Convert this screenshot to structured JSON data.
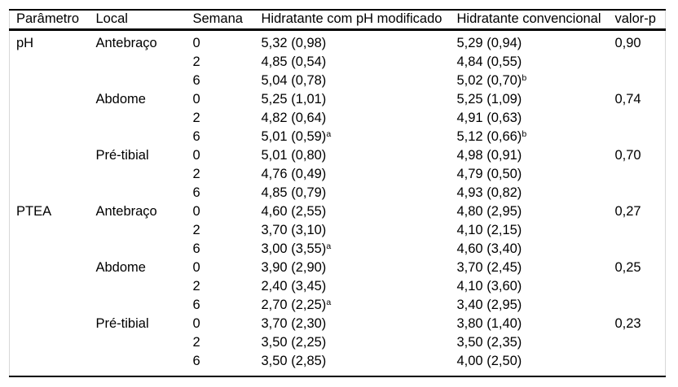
{
  "colors": {
    "background": "#ffffff",
    "text": "#000000",
    "rule": "#000000",
    "side_border": "#d8d8d8"
  },
  "table": {
    "columns": [
      "Parâmetro",
      "Local",
      "Semana",
      "Hidratante com pH modificado",
      "Hidratante convencional",
      "valor-p"
    ],
    "rows": [
      {
        "param": "pH",
        "local": "Antebraço",
        "week": "0",
        "mod": "5,32 (0,98)",
        "mod_sup": "",
        "conv": "5,29 (0,94)",
        "conv_sup": "",
        "p": "0,90"
      },
      {
        "param": "",
        "local": "",
        "week": "2",
        "mod": "4,85 (0,54)",
        "mod_sup": "",
        "conv": "4,84 (0,55)",
        "conv_sup": "",
        "p": ""
      },
      {
        "param": "",
        "local": "",
        "week": "6",
        "mod": "5,04 (0,78)",
        "mod_sup": "",
        "conv": "5,02 (0,70)",
        "conv_sup": "b",
        "p": ""
      },
      {
        "param": "",
        "local": "Abdome",
        "week": "0",
        "mod": "5,25 (1,01)",
        "mod_sup": "",
        "conv": "5,25 (1,09)",
        "conv_sup": "",
        "p": "0,74"
      },
      {
        "param": "",
        "local": "",
        "week": "2",
        "mod": "4,82 (0,64)",
        "mod_sup": "",
        "conv": "4,91 (0,63)",
        "conv_sup": "",
        "p": ""
      },
      {
        "param": "",
        "local": "",
        "week": "6",
        "mod": "5,01 (0,59)",
        "mod_sup": "a",
        "conv": "5,12 (0,66)",
        "conv_sup": "b",
        "p": ""
      },
      {
        "param": "",
        "local": "Pré-tibial",
        "week": "0",
        "mod": "5,01 (0,80)",
        "mod_sup": "",
        "conv": "4,98 (0,91)",
        "conv_sup": "",
        "p": "0,70"
      },
      {
        "param": "",
        "local": "",
        "week": "2",
        "mod": "4,76 (0,49)",
        "mod_sup": "",
        "conv": "4,79 (0,50)",
        "conv_sup": "",
        "p": ""
      },
      {
        "param": "",
        "local": "",
        "week": "6",
        "mod": "4,85 (0,79)",
        "mod_sup": "",
        "conv": "4,93 (0,82)",
        "conv_sup": "",
        "p": ""
      },
      {
        "param": "PTEA",
        "local": "Antebraço",
        "week": "0",
        "mod": "4,60 (2,55)",
        "mod_sup": "",
        "conv": "4,80 (2,95)",
        "conv_sup": "",
        "p": "0,27"
      },
      {
        "param": "",
        "local": "",
        "week": "2",
        "mod": "3,70 (3,10)",
        "mod_sup": "",
        "conv": "4,10 (2,15)",
        "conv_sup": "",
        "p": ""
      },
      {
        "param": "",
        "local": "",
        "week": "6",
        "mod": "3,00 (3,55)",
        "mod_sup": "a",
        "conv": "4,60 (3,40)",
        "conv_sup": "",
        "p": ""
      },
      {
        "param": "",
        "local": "Abdome",
        "week": "0",
        "mod": "3,90 (2,90)",
        "mod_sup": "",
        "conv": "3,70 (2,45)",
        "conv_sup": "",
        "p": "0,25"
      },
      {
        "param": "",
        "local": "",
        "week": "2",
        "mod": "2,40 (3,45)",
        "mod_sup": "",
        "conv": "4,10 (3,60)",
        "conv_sup": "",
        "p": ""
      },
      {
        "param": "",
        "local": "",
        "week": "6",
        "mod": "2,70 (2,25)",
        "mod_sup": "a",
        "conv": "3,40 (2,95)",
        "conv_sup": "",
        "p": ""
      },
      {
        "param": "",
        "local": "Pré-tibial",
        "week": "0",
        "mod": "3,70 (2,30)",
        "mod_sup": "",
        "conv": "3,80 (1,40)",
        "conv_sup": "",
        "p": "0,23"
      },
      {
        "param": "",
        "local": "",
        "week": "2",
        "mod": "3,50 (2,25)",
        "mod_sup": "",
        "conv": "3,50 (2,35)",
        "conv_sup": "",
        "p": ""
      },
      {
        "param": "",
        "local": "",
        "week": "6",
        "mod": "3,50 (2,85)",
        "mod_sup": "",
        "conv": "4,00 (2,50)",
        "conv_sup": "",
        "p": ""
      }
    ]
  }
}
